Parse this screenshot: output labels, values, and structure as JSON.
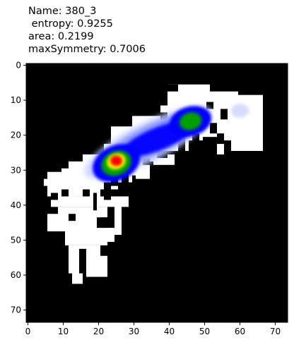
{
  "chart_data": {
    "type": "heatmap",
    "title_lines": [
      "Name: 380_3",
      " entropy: 0.9255",
      "area: 0.2199",
      "maxSymmetry: 0.7006"
    ],
    "xlim": [
      -0.5,
      73.5
    ],
    "ylim": [
      73.5,
      -0.5
    ],
    "x_ticks": [
      0,
      10,
      20,
      30,
      40,
      50,
      60,
      70
    ],
    "y_ticks": [
      0,
      10,
      20,
      30,
      40,
      50,
      60,
      70
    ],
    "background_color": "#000000",
    "mask_color": "#ffffff",
    "colormap": [
      "#ffffff",
      "#0000ff",
      "#00a000",
      "#ffff00",
      "#ff0000"
    ],
    "hotspots": [
      {
        "x": 25,
        "y": 27,
        "peak": "red"
      },
      {
        "x": 46,
        "y": 16,
        "peak": "green"
      },
      {
        "x": 36,
        "y": 21,
        "peak": "blue"
      },
      {
        "x": 60,
        "y": 13,
        "peak": "light-blue"
      }
    ]
  }
}
